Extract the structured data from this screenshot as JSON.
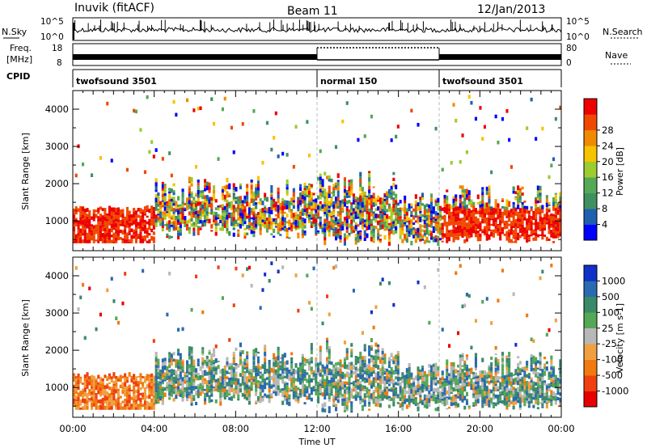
{
  "header": {
    "station": "Inuvik (fitACF)",
    "beam": "Beam 11",
    "date": "12/Jan/2013"
  },
  "top_panels": {
    "nsky_label": "N.Sky",
    "nsky_ticks": [
      "10^5",
      "10^0"
    ],
    "nsearch_label": "N.Search",
    "nsearch_ticks": [
      "10^5",
      "10^0"
    ],
    "freq_label_1": "Freq.",
    "freq_label_2": "[MHz]",
    "freq_ticks": [
      "18",
      "8"
    ],
    "nave_label": "Nave",
    "nave_ticks": [
      "80",
      "0"
    ],
    "cpid_label": "CPID",
    "modes": [
      {
        "name": "twofsound 3501",
        "start": 0,
        "end": 12
      },
      {
        "name": "normal 150",
        "start": 12,
        "end": 18
      },
      {
        "name": "twofsound 3501",
        "start": 18,
        "end": 24
      }
    ]
  },
  "chart_data": [
    {
      "type": "heatmap",
      "title": "",
      "xlabel": "",
      "ylabel": "Slant Range [km]",
      "xlim": [
        0,
        24
      ],
      "ylim": [
        200,
        4500
      ],
      "yticks": [
        "1000",
        "2000",
        "3000",
        "4000"
      ],
      "colorbar": {
        "label": "Power [dB]",
        "ticks": [
          "4",
          "8",
          "12",
          "16",
          "20",
          "24",
          "28"
        ],
        "colors": [
          "#0000ff",
          "#1f5fb0",
          "#3f9060",
          "#55a855",
          "#9ccc30",
          "#f4c400",
          "#f08a00",
          "#f04800",
          "#ee0000"
        ]
      }
    },
    {
      "type": "heatmap",
      "title": "",
      "xlabel": "Time UT",
      "ylabel": "Slant Range [km]",
      "xlim": [
        0,
        24
      ],
      "ylim": [
        200,
        4500
      ],
      "xticks": [
        "00:00",
        "04:00",
        "08:00",
        "12:00",
        "16:00",
        "20:00",
        "00:00"
      ],
      "yticks": [
        "1000",
        "2000",
        "3000",
        "4000"
      ],
      "colorbar": {
        "label": "Velocity [m s-1]",
        "ticks": [
          "1000",
          "500",
          "100",
          "25",
          "-25",
          "-100",
          "-500",
          "-1000"
        ],
        "colors": [
          "#1030c8",
          "#2a6ab0",
          "#3a8a6a",
          "#55a855",
          "#b8b8b8",
          "#f0a040",
          "#f07a10",
          "#f04010",
          "#e80000"
        ]
      }
    }
  ]
}
